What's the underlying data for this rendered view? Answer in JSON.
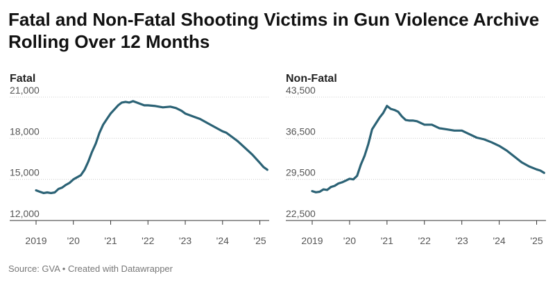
{
  "title": "Fatal and Non-Fatal Shooting Victims in Gun Violence Archive Rolling Over 12 Months",
  "source": "Source: GVA • Created with Datawrapper",
  "colors": {
    "line": "#2b6275",
    "grid": "#cccccc",
    "axis": "#333333"
  },
  "chart_data": [
    {
      "type": "line",
      "title": "Fatal",
      "xlabel": "",
      "ylabel": "",
      "xlim": [
        2019.0,
        2025.25
      ],
      "ylim": [
        12000,
        21000
      ],
      "yticks": [
        12000,
        15000,
        18000,
        21000
      ],
      "ytick_labels": [
        "12,000",
        "15,000",
        "18,000",
        "21,000"
      ],
      "xticks": [
        2019,
        2020,
        2021,
        2022,
        2023,
        2024,
        2025
      ],
      "xtick_labels": [
        "2019",
        "'20",
        "'21",
        "'22",
        "'23",
        "'24",
        "'25"
      ],
      "grid": true,
      "series": [
        {
          "x": [
            2019.0,
            2019.1,
            2019.2,
            2019.3,
            2019.4,
            2019.5,
            2019.6,
            2019.7,
            2019.8,
            2019.9,
            2020.0,
            2020.1,
            2020.2,
            2020.3,
            2020.4,
            2020.5,
            2020.6,
            2020.7,
            2020.8,
            2020.9,
            2021.0,
            2021.1,
            2021.2,
            2021.3,
            2021.4,
            2021.5,
            2021.6,
            2021.7,
            2021.8,
            2021.9,
            2022.0,
            2022.2,
            2022.4,
            2022.6,
            2022.75,
            2022.9,
            2023.0,
            2023.2,
            2023.4,
            2023.6,
            2023.8,
            2024.0,
            2024.1,
            2024.2,
            2024.4,
            2024.6,
            2024.8,
            2025.0,
            2025.1,
            2025.2
          ],
          "values": [
            14200,
            14100,
            14000,
            14050,
            14000,
            14050,
            14300,
            14400,
            14600,
            14750,
            15000,
            15150,
            15300,
            15700,
            16300,
            17000,
            17600,
            18400,
            19000,
            19400,
            19800,
            20100,
            20400,
            20600,
            20650,
            20600,
            20700,
            20600,
            20500,
            20400,
            20400,
            20350,
            20250,
            20300,
            20200,
            20000,
            19800,
            19600,
            19400,
            19100,
            18800,
            18500,
            18400,
            18200,
            17800,
            17300,
            16800,
            16200,
            15900,
            15700
          ]
        }
      ]
    },
    {
      "type": "line",
      "title": "Non-Fatal",
      "xlabel": "",
      "ylabel": "",
      "xlim": [
        2019.0,
        2025.25
      ],
      "ylim": [
        22500,
        43500
      ],
      "yticks": [
        22500,
        29500,
        36500,
        43500
      ],
      "ytick_labels": [
        "22,500",
        "29,500",
        "36,500",
        "43,500"
      ],
      "xticks": [
        2019,
        2020,
        2021,
        2022,
        2023,
        2024,
        2025
      ],
      "xtick_labels": [
        "2019",
        "'20",
        "'21",
        "'22",
        "'23",
        "'24",
        "'25"
      ],
      "grid": true,
      "series": [
        {
          "x": [
            2019.0,
            2019.1,
            2019.2,
            2019.3,
            2019.4,
            2019.5,
            2019.6,
            2019.7,
            2019.8,
            2019.9,
            2020.0,
            2020.1,
            2020.2,
            2020.3,
            2020.4,
            2020.5,
            2020.6,
            2020.7,
            2020.8,
            2020.9,
            2021.0,
            2021.1,
            2021.2,
            2021.3,
            2021.4,
            2021.5,
            2021.6,
            2021.7,
            2021.8,
            2022.0,
            2022.2,
            2022.4,
            2022.6,
            2022.8,
            2023.0,
            2023.2,
            2023.4,
            2023.6,
            2023.8,
            2024.0,
            2024.2,
            2024.4,
            2024.6,
            2024.8,
            2025.0,
            2025.1,
            2025.2
          ],
          "values": [
            27500,
            27300,
            27400,
            27800,
            27700,
            28200,
            28400,
            28800,
            29000,
            29300,
            29600,
            29500,
            30100,
            32000,
            33500,
            35500,
            38000,
            39000,
            40000,
            40800,
            42000,
            41500,
            41300,
            41000,
            40200,
            39600,
            39500,
            39500,
            39400,
            38800,
            38800,
            38200,
            38000,
            37800,
            37800,
            37200,
            36600,
            36300,
            35800,
            35200,
            34400,
            33400,
            32400,
            31700,
            31200,
            31000,
            30600
          ]
        }
      ]
    }
  ]
}
